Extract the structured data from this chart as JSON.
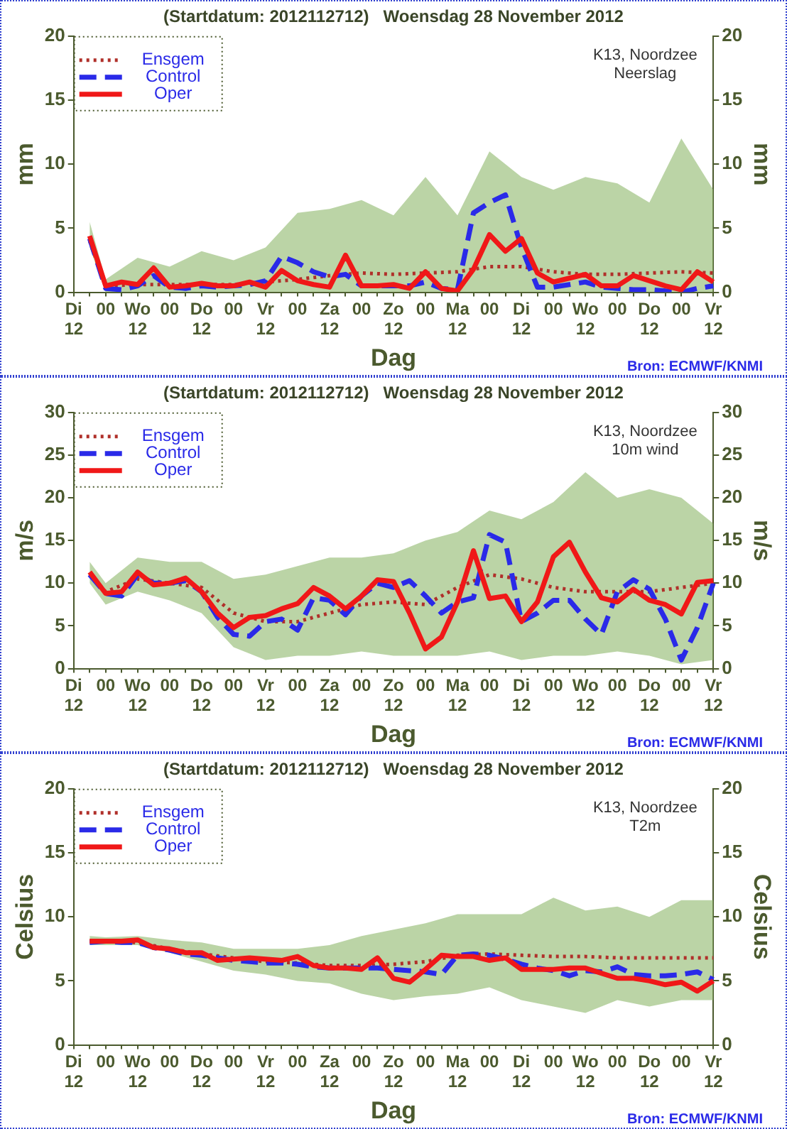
{
  "chart_data": [
    {
      "type": "line",
      "title": "(Startdatum: 2012112712)   Woensdag 28 November 2012",
      "xlabel": "Dag",
      "ylabel": "mm",
      "y2label": "mm",
      "legend": "top left",
      "annotations": [
        "K13, Noordzee\nNeerslag",
        "Bron: ECMWF/KNMI"
      ],
      "categories": [
        "Di\n12",
        null,
        "00",
        null,
        "Wo\n12",
        null,
        "00",
        null,
        "Do\n12",
        null,
        "00",
        null,
        "Vr\n12",
        null,
        "00",
        null,
        "Za\n12",
        null,
        "00",
        null,
        "Zo\n12",
        null,
        "00",
        null,
        "Ma\n12",
        null,
        "00",
        null,
        "Di\n12",
        null,
        "00",
        null,
        "Wo\n12",
        null,
        "00",
        null,
        "Do\n12",
        null,
        "00",
        null,
        "Vr\n12"
      ],
      "ylim": [
        0,
        20
      ],
      "yticks": [
        0,
        5,
        10,
        15,
        20
      ],
      "y2lim": [
        0,
        20
      ],
      "y2ticks": [
        0,
        5,
        10,
        15,
        20
      ],
      "series": [
        {
          "name": "Ensgem",
          "color": "#b0302a",
          "line_style": "dotted",
          "values": [
            null,
            4.0,
            0.5,
            null,
            0.6,
            null,
            0.6,
            null,
            0.6,
            null,
            0.6,
            null,
            0.8,
            null,
            1.0,
            null,
            1.3,
            null,
            1.5,
            null,
            1.4,
            null,
            1.5,
            null,
            1.6,
            null,
            2.0,
            null,
            2.0,
            null,
            1.6,
            null,
            1.4,
            null,
            1.4,
            null,
            1.5,
            null,
            1.6,
            null,
            1.5
          ],
          "lower": [
            null,
            3.5,
            0,
            null,
            0,
            null,
            0,
            null,
            0,
            null,
            0,
            null,
            0,
            null,
            0,
            null,
            0,
            null,
            0,
            null,
            0,
            null,
            0,
            null,
            0,
            null,
            0,
            null,
            0,
            null,
            0,
            null,
            0,
            null,
            0,
            null,
            0,
            null,
            0,
            null,
            0
          ],
          "upper": [
            null,
            5.5,
            1.0,
            null,
            2.7,
            null,
            2.0,
            null,
            3.2,
            null,
            2.5,
            null,
            3.5,
            null,
            6.2,
            null,
            6.5,
            null,
            7.2,
            null,
            6.0,
            null,
            9.0,
            null,
            6.0,
            null,
            11.0,
            null,
            9.0,
            null,
            8.0,
            null,
            9.0,
            null,
            8.5,
            null,
            7.0,
            null,
            12.0,
            null,
            8.0
          ]
        },
        {
          "name": "Control",
          "color": "#2a2ae8",
          "line_style": "dashed",
          "values": [
            null,
            4.2,
            0.3,
            0.2,
            0.5,
            1.3,
            0.4,
            0.3,
            0.5,
            0.4,
            0.5,
            0.6,
            0.9,
            2.8,
            2.3,
            1.6,
            1.2,
            1.4,
            0.5,
            0.5,
            0.5,
            0.5,
            0.8,
            0.3,
            0.2,
            6.2,
            7.0,
            7.6,
            3.5,
            0.4,
            0.4,
            0.6,
            0.8,
            0.4,
            0.3,
            0.2,
            0.2,
            0.1,
            0.0,
            0.3,
            0.5
          ]
        },
        {
          "name": "Oper",
          "color": "#f01818",
          "line_style": "solid",
          "values": [
            null,
            4.4,
            0.5,
            0.8,
            0.6,
            1.9,
            0.4,
            0.5,
            0.7,
            0.5,
            0.5,
            0.8,
            0.4,
            1.7,
            0.9,
            0.6,
            0.4,
            2.9,
            0.5,
            0.5,
            0.6,
            0.3,
            1.6,
            0.3,
            0.1,
            1.8,
            4.5,
            3.2,
            4.2,
            1.5,
            0.8,
            1.1,
            1.4,
            0.5,
            0.5,
            1.3,
            0.9,
            0.5,
            0.2,
            1.6,
            0.8
          ]
        }
      ]
    },
    {
      "type": "line",
      "title": "(Startdatum: 2012112712)   Woensdag 28 November 2012",
      "xlabel": "Dag",
      "ylabel": "m/s",
      "y2label": "m/s",
      "legend": "top left",
      "annotations": [
        "K13, Noordzee\n10m wind",
        "Bron: ECMWF/KNMI"
      ],
      "categories": [
        "Di\n12",
        null,
        "00",
        null,
        "Wo\n12",
        null,
        "00",
        null,
        "Do\n12",
        null,
        "00",
        null,
        "Vr\n12",
        null,
        "00",
        null,
        "Za\n12",
        null,
        "00",
        null,
        "Zo\n12",
        null,
        "00",
        null,
        "Ma\n12",
        null,
        "00",
        null,
        "Di\n12",
        null,
        "00",
        null,
        "Wo\n12",
        null,
        "00",
        null,
        "Do\n12",
        null,
        "00",
        null,
        "Vr\n12"
      ],
      "ylim": [
        0,
        30
      ],
      "yticks": [
        0,
        5,
        10,
        15,
        20,
        25,
        30
      ],
      "y2lim": [
        0,
        30
      ],
      "y2ticks": [
        0,
        5,
        10,
        15,
        20,
        25,
        30
      ],
      "series": [
        {
          "name": "Ensgem",
          "color": "#b0302a",
          "line_style": "dotted",
          "values": [
            null,
            11,
            9,
            null,
            10.5,
            null,
            10,
            null,
            9.5,
            null,
            6.5,
            null,
            5.5,
            null,
            5.5,
            null,
            6.5,
            null,
            7.5,
            null,
            7.8,
            null,
            7.5,
            null,
            9.5,
            null,
            11,
            null,
            10.5,
            null,
            9.5,
            null,
            9,
            null,
            9,
            null,
            9,
            null,
            9.5,
            null,
            10
          ],
          "lower": [
            null,
            10,
            7.5,
            null,
            9,
            null,
            8,
            null,
            6.5,
            null,
            2.5,
            null,
            1,
            null,
            1.5,
            null,
            1.5,
            null,
            2,
            null,
            1.5,
            null,
            1.5,
            null,
            1.5,
            null,
            2,
            null,
            1,
            null,
            1.5,
            null,
            1.5,
            null,
            2,
            null,
            1.5,
            null,
            0.5,
            null,
            1
          ],
          "upper": [
            null,
            12.5,
            10,
            null,
            13,
            null,
            12.5,
            null,
            12.5,
            null,
            10.5,
            null,
            11,
            null,
            12,
            null,
            13,
            null,
            13,
            null,
            13.5,
            null,
            15,
            null,
            16,
            null,
            18.5,
            null,
            17.5,
            null,
            19.5,
            null,
            23,
            null,
            20,
            null,
            21,
            null,
            20,
            null,
            17
          ]
        },
        {
          "name": "Control",
          "color": "#2a2ae8",
          "line_style": "dashed",
          "values": [
            null,
            11.0,
            8.8,
            8.5,
            11.0,
            10.0,
            10.0,
            10.3,
            9.0,
            6.0,
            4.0,
            3.8,
            5.5,
            5.8,
            4.5,
            8.3,
            8.0,
            6.3,
            8.5,
            10.0,
            9.5,
            10.3,
            8.5,
            6.5,
            7.8,
            8.3,
            15.7,
            14.8,
            5.5,
            6.5,
            8.0,
            8.0,
            5.8,
            4.0,
            9.0,
            10.4,
            9.3,
            5.8,
            1.0,
            4.8,
            10.0
          ]
        },
        {
          "name": "Oper",
          "color": "#f01818",
          "line_style": "solid",
          "values": [
            null,
            11.3,
            8.8,
            9.0,
            11.3,
            9.8,
            10.0,
            10.6,
            9.0,
            6.5,
            4.8,
            6.0,
            6.2,
            7.0,
            7.6,
            9.5,
            8.5,
            7.0,
            8.5,
            10.4,
            10.2,
            6.5,
            2.3,
            3.7,
            7.8,
            13.8,
            8.2,
            8.5,
            5.5,
            7.8,
            13.1,
            14.8,
            11.3,
            8.3,
            7.8,
            9.3,
            8.0,
            7.5,
            6.4,
            10.1,
            10.3
          ]
        }
      ]
    },
    {
      "type": "line",
      "title": "(Startdatum: 2012112712)   Woensdag 28 November 2012",
      "xlabel": "Dag",
      "ylabel": "Celsius",
      "y2label": "Celsius",
      "legend": "top left",
      "annotations": [
        "K13, Noordzee\nT2m",
        "Bron: ECMWF/KNMI"
      ],
      "categories": [
        "Di\n12",
        null,
        "00",
        null,
        "Wo\n12",
        null,
        "00",
        null,
        "Do\n12",
        null,
        "00",
        null,
        "Vr\n12",
        null,
        "00",
        null,
        "Za\n12",
        null,
        "00",
        null,
        "Zo\n12",
        null,
        "00",
        null,
        "Ma\n12",
        null,
        "00",
        null,
        "Di\n12",
        null,
        "00",
        null,
        "Wo\n12",
        null,
        "00",
        null,
        "Do\n12",
        null,
        "00",
        null,
        "Vr\n12"
      ],
      "ylim": [
        0,
        20
      ],
      "yticks": [
        0,
        5,
        10,
        15,
        20
      ],
      "y2lim": [
        0,
        20
      ],
      "y2ticks": [
        0,
        5,
        10,
        15,
        20
      ],
      "series": [
        {
          "name": "Ensgem",
          "color": "#b0302a",
          "line_style": "dotted",
          "values": [
            null,
            8.1,
            8.1,
            null,
            8.0,
            null,
            7.5,
            null,
            7.1,
            null,
            6.8,
            null,
            6.5,
            null,
            6.4,
            null,
            6.2,
            null,
            6.2,
            null,
            6.3,
            null,
            6.5,
            null,
            7.0,
            null,
            7.1,
            null,
            7.0,
            null,
            6.9,
            null,
            6.9,
            null,
            6.8,
            null,
            6.8,
            null,
            6.8,
            null,
            6.8
          ],
          "lower": [
            null,
            7.8,
            7.8,
            null,
            7.8,
            null,
            7.2,
            null,
            6.5,
            null,
            5.8,
            null,
            5.5,
            null,
            5.0,
            null,
            4.8,
            null,
            4.0,
            null,
            3.5,
            null,
            3.8,
            null,
            4.0,
            null,
            4.5,
            null,
            3.5,
            null,
            3.0,
            null,
            2.5,
            null,
            3.5,
            null,
            3.0,
            null,
            3.5,
            null,
            3.5
          ],
          "upper": [
            null,
            8.5,
            8.4,
            null,
            8.5,
            null,
            8.2,
            null,
            8.0,
            null,
            7.5,
            null,
            7.5,
            null,
            7.5,
            null,
            7.8,
            null,
            8.5,
            null,
            9,
            null,
            9.5,
            null,
            10.2,
            null,
            10.2,
            null,
            10.2,
            null,
            11.5,
            null,
            10.5,
            null,
            10.8,
            null,
            10,
            null,
            11.3,
            null,
            11.3
          ]
        },
        {
          "name": "Control",
          "color": "#2a2ae8",
          "line_style": "dashed",
          "values": [
            null,
            8.0,
            8.1,
            8.0,
            8.0,
            7.6,
            7.4,
            7.1,
            7.0,
            6.8,
            6.6,
            6.5,
            6.4,
            6.4,
            6.3,
            6.1,
            6.0,
            6.0,
            6.0,
            6.0,
            5.9,
            5.8,
            5.7,
            5.5,
            7.0,
            7.1,
            7.0,
            6.7,
            6.3,
            6.0,
            5.8,
            5.4,
            5.8,
            5.7,
            6.1,
            5.5,
            5.4,
            5.4,
            5.5,
            5.7,
            5.1
          ]
        },
        {
          "name": "Oper",
          "color": "#f01818",
          "line_style": "solid",
          "values": [
            null,
            8.1,
            8.1,
            8.1,
            8.2,
            7.6,
            7.5,
            7.2,
            7.2,
            6.6,
            6.7,
            6.8,
            6.7,
            6.6,
            6.9,
            6.2,
            6.0,
            6.0,
            5.9,
            6.8,
            5.2,
            4.9,
            5.9,
            7.0,
            6.9,
            6.9,
            6.6,
            6.8,
            5.9,
            5.9,
            5.9,
            6.0,
            6.0,
            5.6,
            5.2,
            5.2,
            5.0,
            4.7,
            4.9,
            4.2,
            5.0
          ]
        }
      ]
    }
  ]
}
